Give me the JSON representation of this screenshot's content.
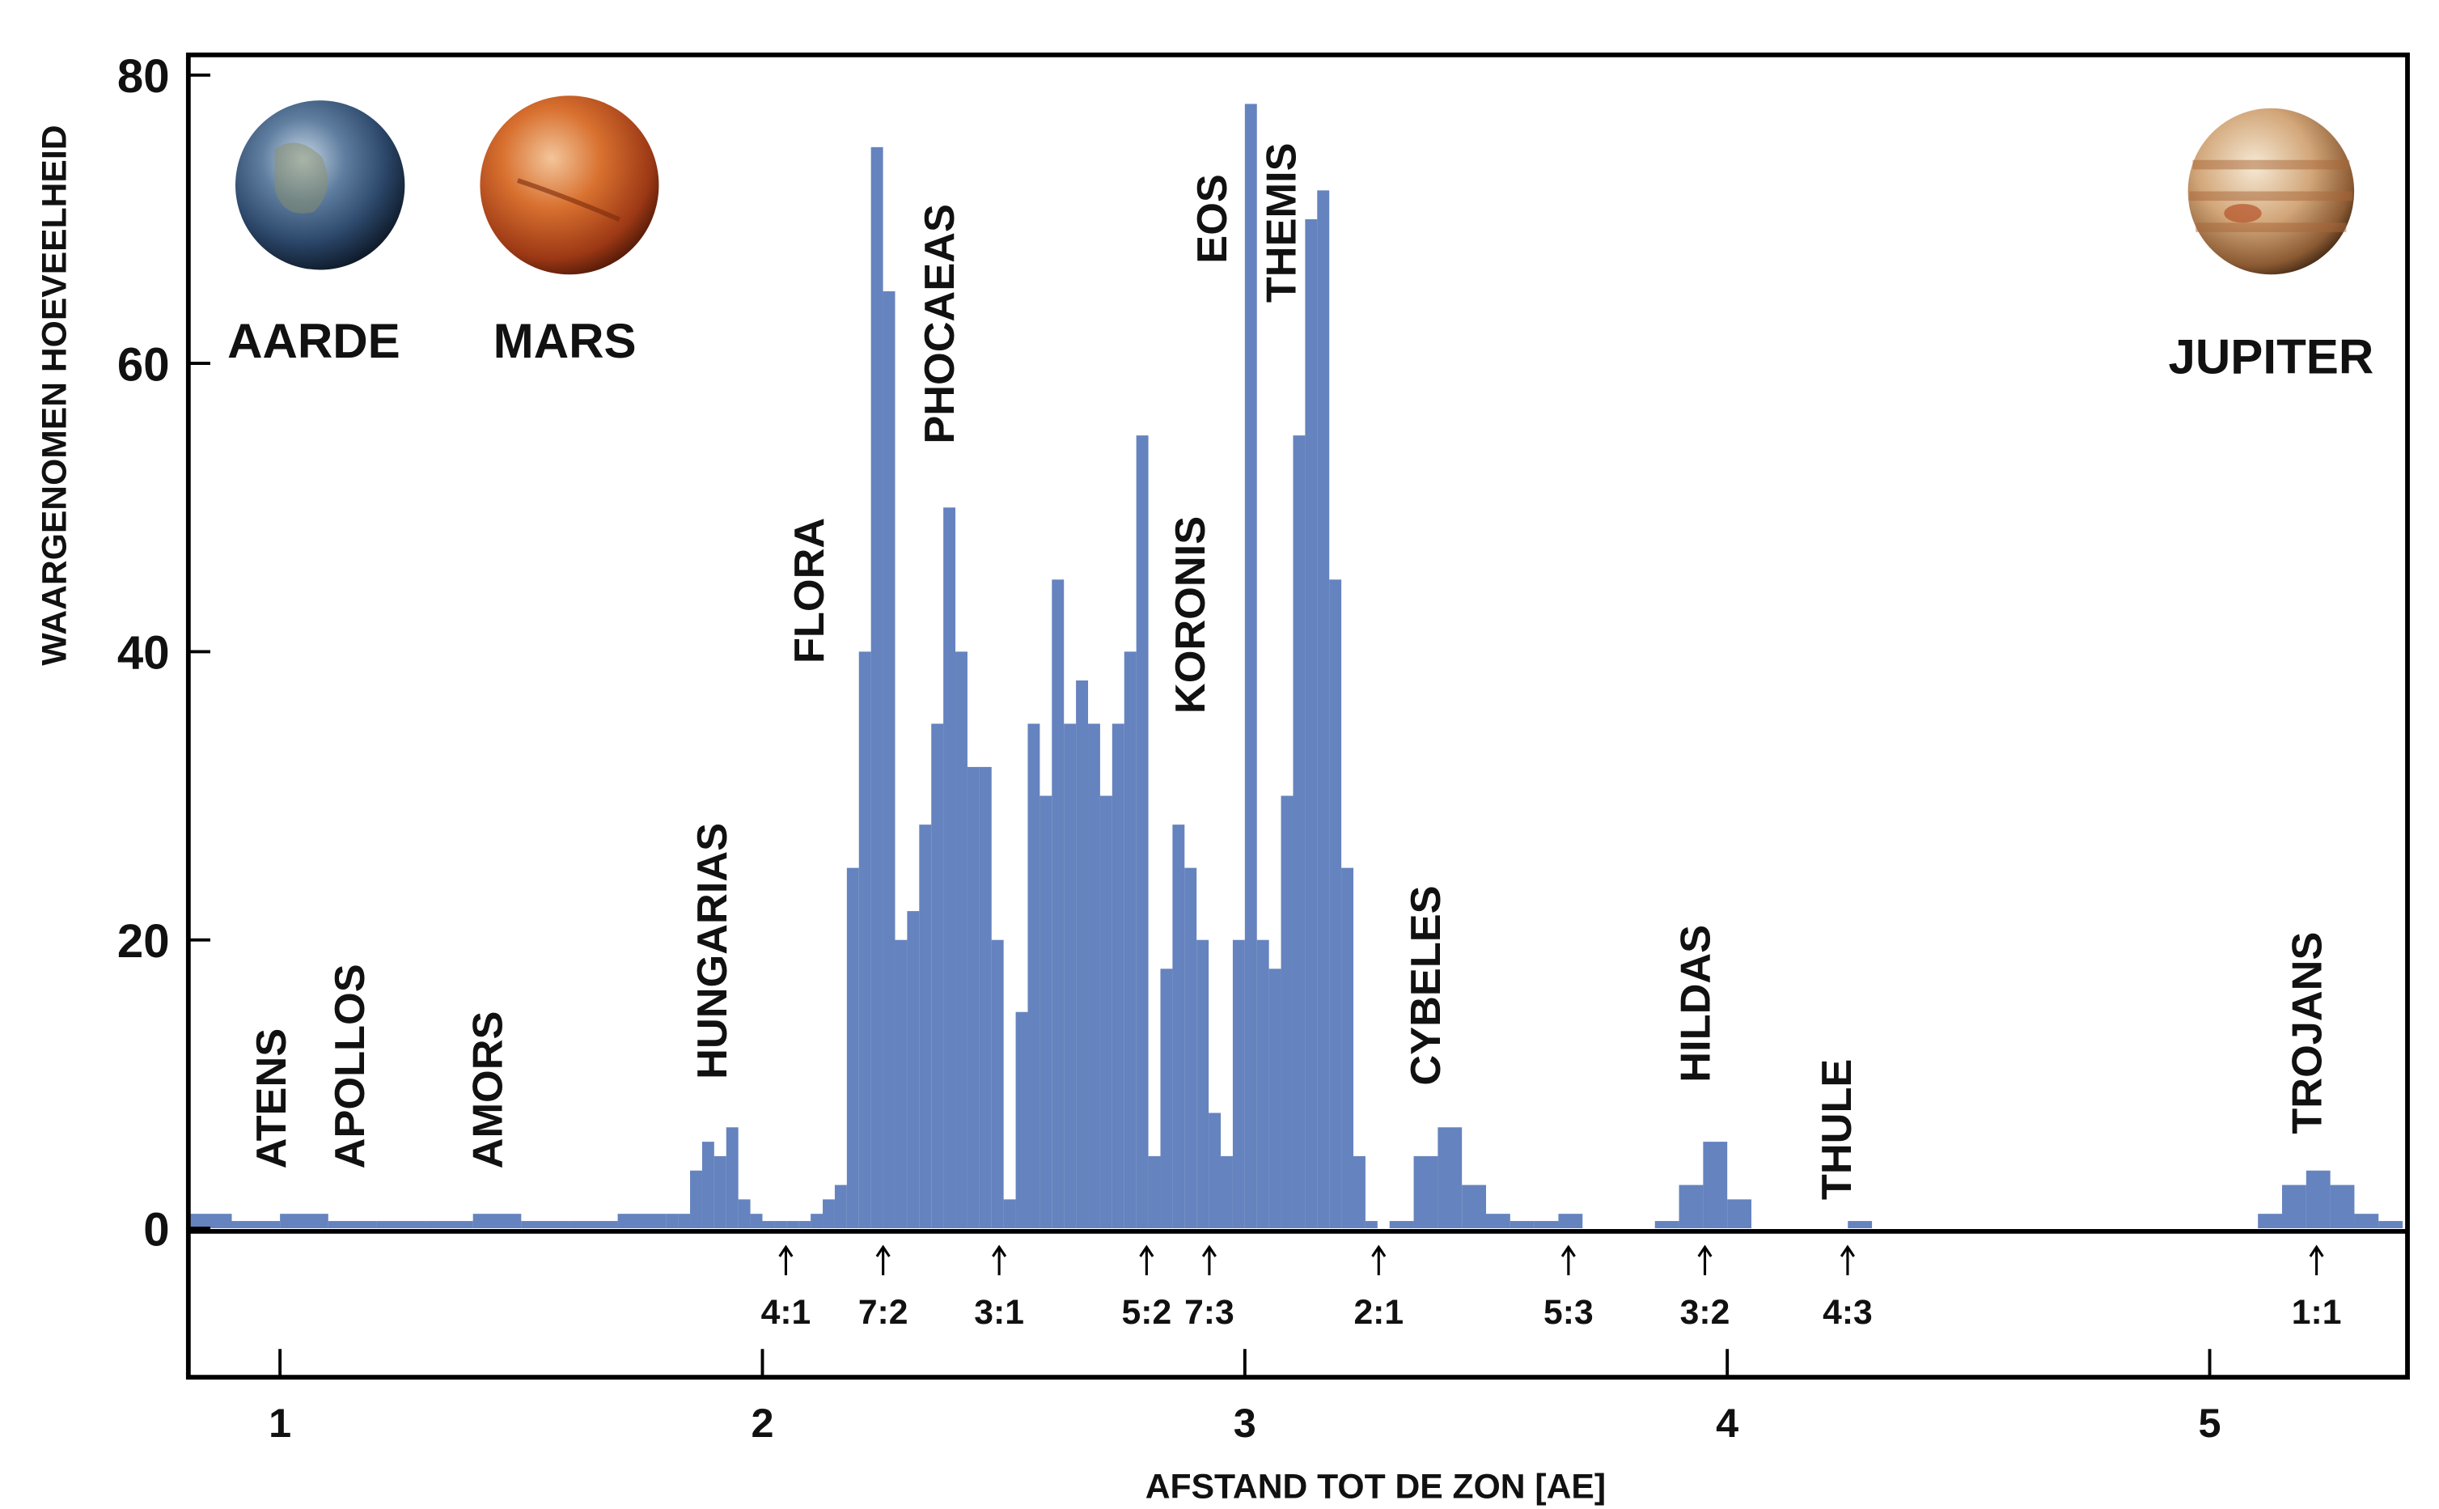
{
  "chart_data": {
    "type": "histogram",
    "xlabel": "AFSTAND TOT DE ZON [AE]",
    "ylabel": "WAARGENOMEN HOEVEELHEID",
    "color": "#4a6db3",
    "xlim": [
      0.81,
      5.41
    ],
    "ylim": [
      0,
      81.4
    ],
    "xticks": [
      1,
      2,
      3,
      4,
      5
    ],
    "yticks": [
      0,
      20,
      40,
      60,
      80
    ],
    "bins": [
      0.8,
      0.9,
      1,
      1.1,
      1.2,
      1.3,
      1.4,
      1.5,
      1.6,
      1.7,
      1.8,
      1.825,
      1.85,
      1.875,
      1.9,
      1.925,
      1.95,
      1.975,
      2,
      2.025,
      2.05,
      2.075,
      2.1,
      2.125,
      2.15,
      2.175,
      2.2,
      2.225,
      2.25,
      2.275,
      2.3,
      2.325,
      2.35,
      2.375,
      2.4,
      2.425,
      2.45,
      2.475,
      2.5,
      2.525,
      2.55,
      2.575,
      2.6,
      2.625,
      2.65,
      2.675,
      2.7,
      2.725,
      2.75,
      2.775,
      2.8,
      2.825,
      2.85,
      2.875,
      2.9,
      2.925,
      2.95,
      2.975,
      3,
      3.025,
      3.05,
      3.075,
      3.1,
      3.125,
      3.15,
      3.175,
      3.2,
      3.225,
      3.25,
      3.275,
      3.3,
      3.35,
      3.4,
      3.45,
      3.5,
      3.55,
      3.6,
      3.65,
      3.7,
      3.75,
      3.8,
      3.85,
      3.9,
      3.95,
      4,
      4.05,
      4.1,
      4.15,
      4.2,
      4.25,
      4.3,
      4.35,
      4.4,
      4.45,
      4.5,
      4.55,
      4.6,
      4.65,
      4.7,
      4.75,
      4.8,
      4.85,
      4.9,
      4.95,
      5,
      5.05,
      5.1,
      5.15,
      5.2,
      5.25,
      5.3,
      5.35,
      5.4
    ],
    "values": [
      1,
      0.5,
      1,
      0.5,
      0.5,
      0.5,
      1,
      0.5,
      0.5,
      1,
      1,
      1,
      4,
      6,
      5,
      7,
      2,
      1,
      0.5,
      0.5,
      0.5,
      0.5,
      1,
      2,
      3,
      25,
      40,
      75,
      65,
      20,
      22,
      28,
      35,
      50,
      40,
      32,
      32,
      20,
      2,
      15,
      35,
      30,
      45,
      35,
      38,
      35,
      30,
      35,
      40,
      55,
      5,
      18,
      28,
      25,
      20,
      8,
      5,
      20,
      78,
      20,
      18,
      30,
      55,
      70,
      72,
      45,
      25,
      5,
      0.5,
      0,
      0.5,
      5,
      7,
      3,
      1,
      0.5,
      0.5,
      1,
      0,
      0,
      0,
      0.5,
      3,
      6,
      2,
      0,
      0,
      0,
      0,
      0.5,
      0,
      0,
      0,
      0,
      0,
      0,
      0,
      0,
      0,
      0,
      0,
      0,
      0,
      0,
      0,
      0,
      1,
      3,
      4,
      3,
      1,
      0.5
    ],
    "group_labels": [
      "ATENS",
      "APOLLOS",
      "AMORS",
      "HUNGARIAS",
      "FLORA",
      "PHOCAEAS",
      "KORONIS",
      "EOS",
      "THEMIS",
      "CYBELES",
      "HILDAS",
      "THULE",
      "TROJANS"
    ],
    "resonance_labels": [
      "4:1",
      "7:2",
      "3:1",
      "5:2",
      "7:3",
      "2:1",
      "5:3",
      "3:2",
      "4:3",
      "1:1"
    ],
    "planet_labels": [
      "AARDE",
      "MARS",
      "JUPITER"
    ]
  }
}
